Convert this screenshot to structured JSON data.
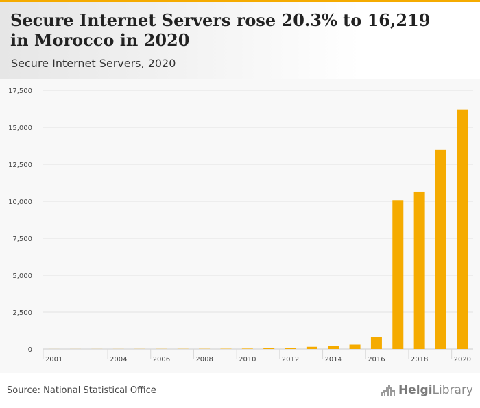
{
  "header": {
    "title": "Secure Internet Servers rose 20.3% to 16,219 in Morocco in 2020",
    "subtitle": "Secure Internet Servers, 2020"
  },
  "footer": {
    "source": "Source: National Statistical Office",
    "brand_bold": "Helgi",
    "brand_light": "Library"
  },
  "colors": {
    "bar": "#f5ab00",
    "accent": "#f5ab00",
    "grid": "#e2e2e2"
  },
  "chart_data": {
    "type": "bar",
    "title": "Secure Internet Servers rose 20.3% to 16,219 in Morocco in 2020",
    "subtitle": "Secure Internet Servers, 2020",
    "xlabel": "",
    "ylabel": "",
    "categories": [
      "2001",
      "2002",
      "2003",
      "2004",
      "2005",
      "2006",
      "2007",
      "2008",
      "2009",
      "2010",
      "2011",
      "2012",
      "2013",
      "2014",
      "2015",
      "2016",
      "2017",
      "2018",
      "2019",
      "2020"
    ],
    "x_tick_labels": [
      "2001",
      "2004",
      "2006",
      "2008",
      "2010",
      "2012",
      "2014",
      "2016",
      "2018",
      "2020"
    ],
    "values": [
      3,
      4,
      5,
      6,
      8,
      10,
      12,
      15,
      20,
      30,
      60,
      80,
      150,
      210,
      300,
      820,
      10080,
      10650,
      13480,
      16219
    ],
    "ylim": [
      0,
      17500
    ],
    "yticks": [
      0,
      2500,
      5000,
      7500,
      10000,
      12500,
      15000,
      17500
    ],
    "ytick_labels": [
      "0",
      "2,500",
      "5,000",
      "7,500",
      "10,000",
      "12,500",
      "15,000",
      "17,500"
    ],
    "grid": true,
    "legend": "none"
  }
}
